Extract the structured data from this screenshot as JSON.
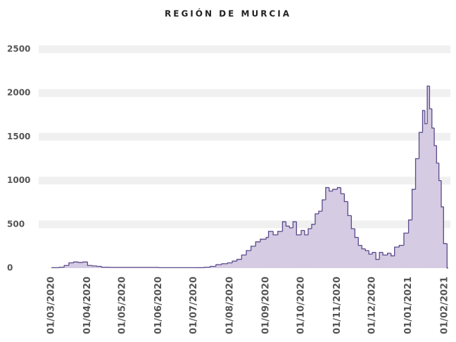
{
  "chart_data": {
    "type": "step-area",
    "title": "REGIÓN DE MURCIA",
    "color": "#d5cbe2",
    "line_color": "#5a4a8c",
    "grid": true,
    "x": [
      "01/03/2020",
      "08/03/2020",
      "12/03/2020",
      "16/03/2020",
      "20/03/2020",
      "24/03/2020",
      "28/03/2020",
      "01/04/2020",
      "05/04/2020",
      "09/04/2020",
      "13/04/2020",
      "20/04/2020",
      "01/05/2020",
      "01/06/2020",
      "01/07/2020",
      "10/07/2020",
      "15/07/2020",
      "20/07/2020",
      "25/07/2020",
      "30/07/2020",
      "03/08/2020",
      "07/08/2020",
      "11/08/2020",
      "15/08/2020",
      "19/08/2020",
      "23/08/2020",
      "27/08/2020",
      "01/09/2020",
      "03/09/2020",
      "07/09/2020",
      "11/09/2020",
      "15/09/2020",
      "18/09/2020",
      "21/09/2020",
      "24/09/2020",
      "27/09/2020",
      "01/10/2020",
      "04/10/2020",
      "07/10/2020",
      "10/10/2020",
      "13/10/2020",
      "16/10/2020",
      "19/10/2020",
      "22/10/2020",
      "25/10/2020",
      "28/10/2020",
      "01/11/2020",
      "04/11/2020",
      "07/11/2020",
      "10/11/2020",
      "13/11/2020",
      "16/11/2020",
      "19/11/2020",
      "22/11/2020",
      "25/11/2020",
      "28/11/2020",
      "01/12/2020",
      "04/12/2020",
      "07/12/2020",
      "10/12/2020",
      "14/12/2020",
      "17/12/2020",
      "20/12/2020",
      "24/12/2020",
      "28/12/2020",
      "01/01/2021",
      "04/01/2021",
      "07/01/2021",
      "10/01/2021",
      "13/01/2021",
      "15/01/2021",
      "17/01/2021",
      "19/01/2021",
      "21/01/2021",
      "23/01/2021",
      "25/01/2021",
      "27/01/2021",
      "29/01/2021",
      "31/01/2021",
      "03/02/2021"
    ],
    "values": [
      5,
      10,
      30,
      60,
      70,
      65,
      70,
      30,
      25,
      20,
      10,
      8,
      8,
      5,
      5,
      10,
      20,
      40,
      50,
      60,
      80,
      100,
      150,
      200,
      250,
      300,
      330,
      350,
      420,
      380,
      420,
      530,
      480,
      460,
      530,
      380,
      430,
      380,
      450,
      500,
      620,
      650,
      780,
      920,
      880,
      900,
      920,
      850,
      760,
      600,
      450,
      350,
      260,
      220,
      200,
      160,
      180,
      100,
      180,
      150,
      170,
      140,
      240,
      260,
      400,
      550,
      900,
      1250,
      1550,
      1800,
      1650,
      2080,
      1820,
      1600,
      1400,
      1200,
      1000,
      700,
      280,
      0
    ],
    "xlim": [
      "01/03/2020",
      "04/02/2021"
    ],
    "xticks": [
      "01/03/2020",
      "01/04/2020",
      "01/05/2020",
      "01/06/2020",
      "01/07/2020",
      "01/08/2020",
      "01/09/2020",
      "01/10/2020",
      "01/11/2020",
      "01/12/2020",
      "01/01/2021",
      "01/02/2021"
    ],
    "ylim": [
      0,
      2500
    ],
    "yticks": [
      0,
      500,
      1000,
      1500,
      2000,
      2500
    ]
  }
}
